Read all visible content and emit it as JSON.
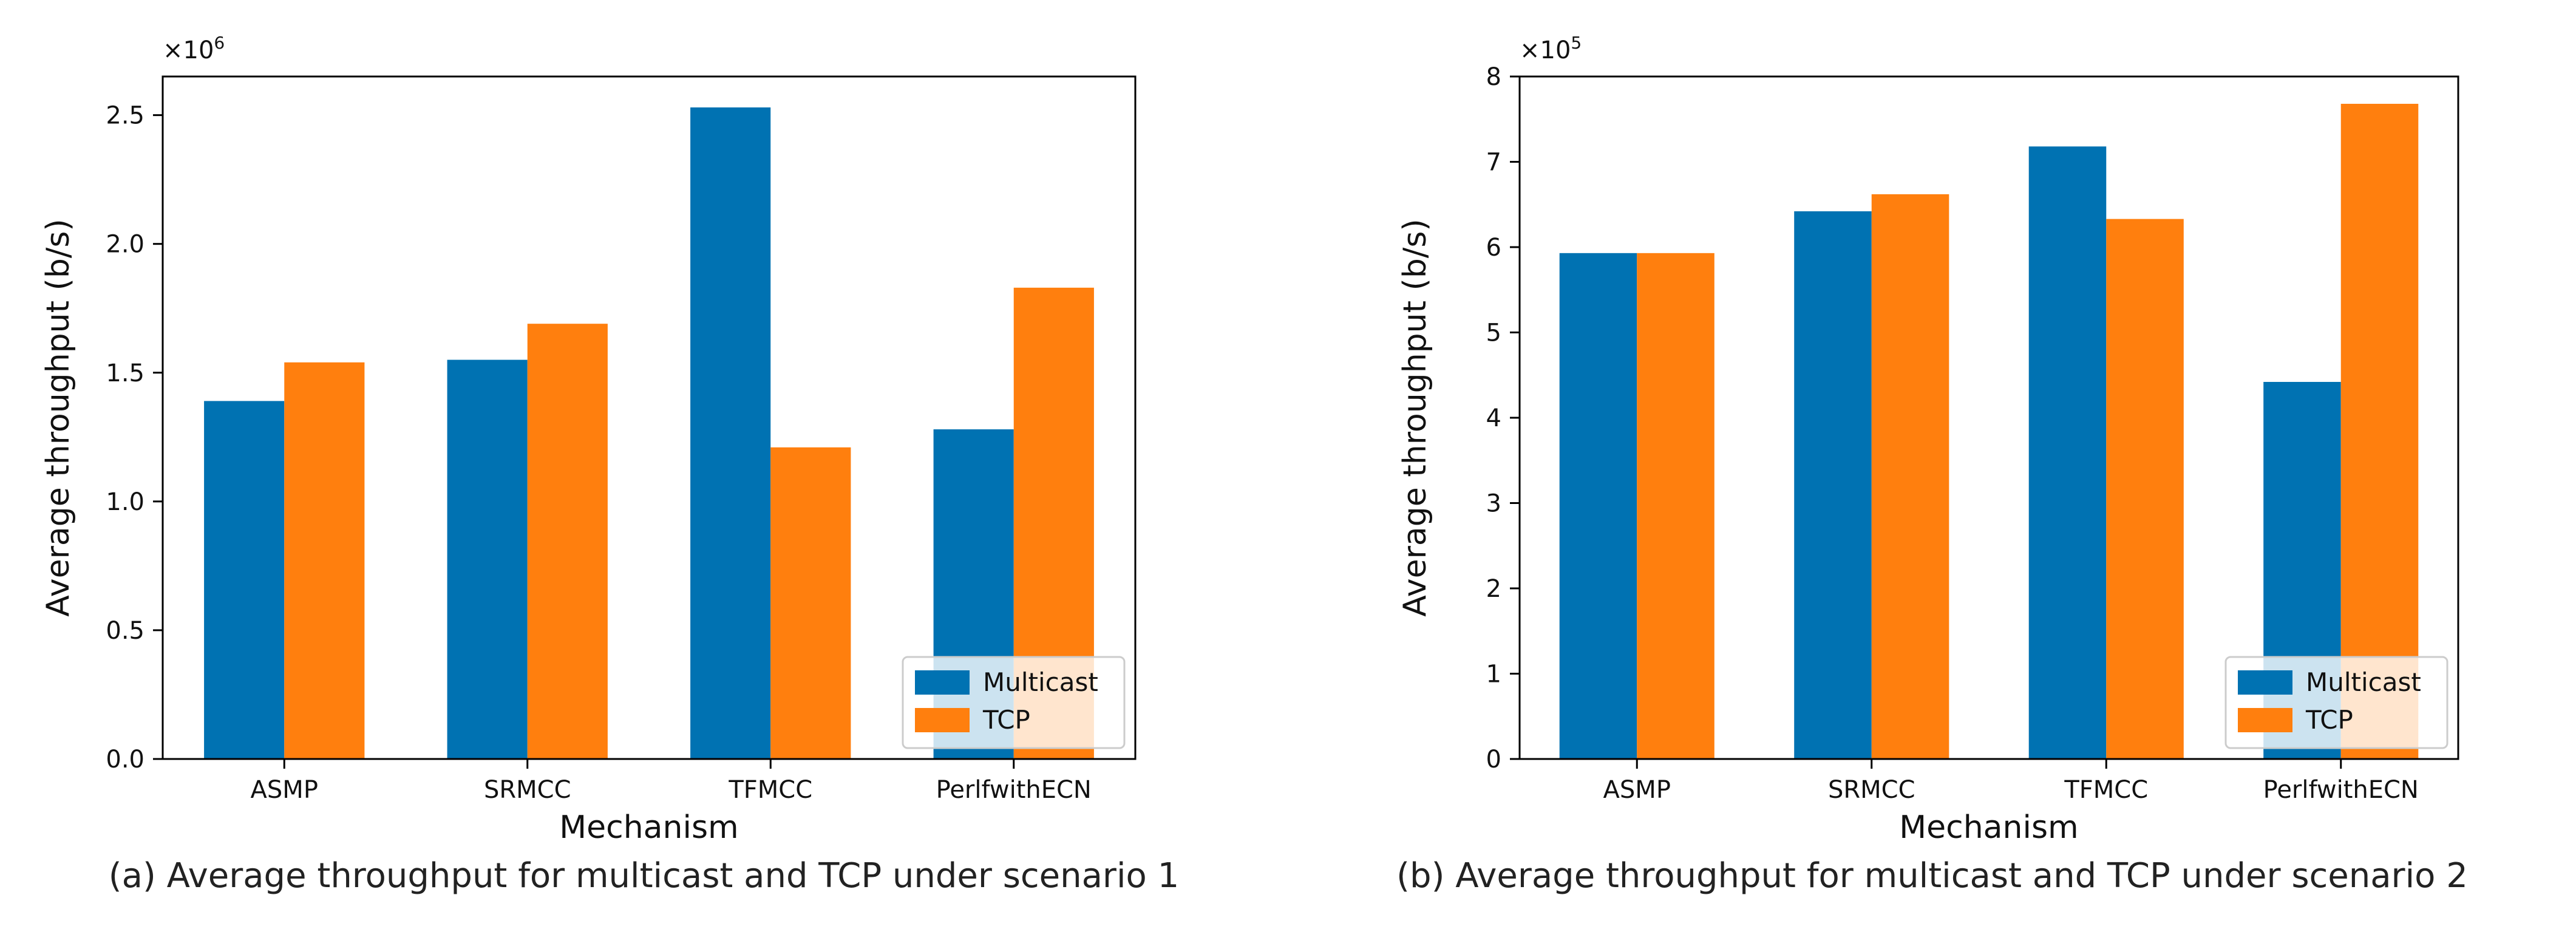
{
  "colors": {
    "multicast": "#0072b2",
    "tcp": "#ff7f0e",
    "axis": "#000000"
  },
  "chart_data": [
    {
      "type": "bar",
      "caption": "(a) Average throughput for multicast and TCP under scenario 1",
      "xlabel": "Mechanism",
      "ylabel": "Average throughput (b/s)",
      "scale_label": "×10",
      "scale_exp": "6",
      "ylim": [
        0,
        2.65
      ],
      "yticks": [
        "0.0",
        "0.5",
        "1.0",
        "1.5",
        "2.0",
        "2.5"
      ],
      "ytick_values": [
        0,
        0.5,
        1.0,
        1.5,
        2.0,
        2.5
      ],
      "categories": [
        "ASMP",
        "SRMCC",
        "TFMCC",
        "PerlfwithECN"
      ],
      "series": [
        {
          "name": "Multicast",
          "values": [
            1.39,
            1.55,
            2.53,
            1.28
          ]
        },
        {
          "name": "TCP",
          "values": [
            1.54,
            1.69,
            1.21,
            1.83
          ]
        }
      ],
      "legend": "lower-right",
      "grid": false
    },
    {
      "type": "bar",
      "caption": "(b) Average throughput for multicast and TCP under scenario 2",
      "xlabel": "Mechanism",
      "ylabel": "Average throughput (b/s)",
      "scale_label": "×10",
      "scale_exp": "5",
      "ylim": [
        0,
        8
      ],
      "yticks": [
        "0",
        "1",
        "2",
        "3",
        "4",
        "5",
        "6",
        "7",
        "8"
      ],
      "ytick_values": [
        0,
        1,
        2,
        3,
        4,
        5,
        6,
        7,
        8
      ],
      "categories": [
        "ASMP",
        "SRMCC",
        "TFMCC",
        "PerlfwithECN"
      ],
      "series": [
        {
          "name": "Multicast",
          "values": [
            5.93,
            6.42,
            7.18,
            4.42
          ]
        },
        {
          "name": "TCP",
          "values": [
            5.93,
            6.62,
            6.33,
            7.68
          ]
        }
      ],
      "legend": "lower-right",
      "grid": false
    }
  ]
}
